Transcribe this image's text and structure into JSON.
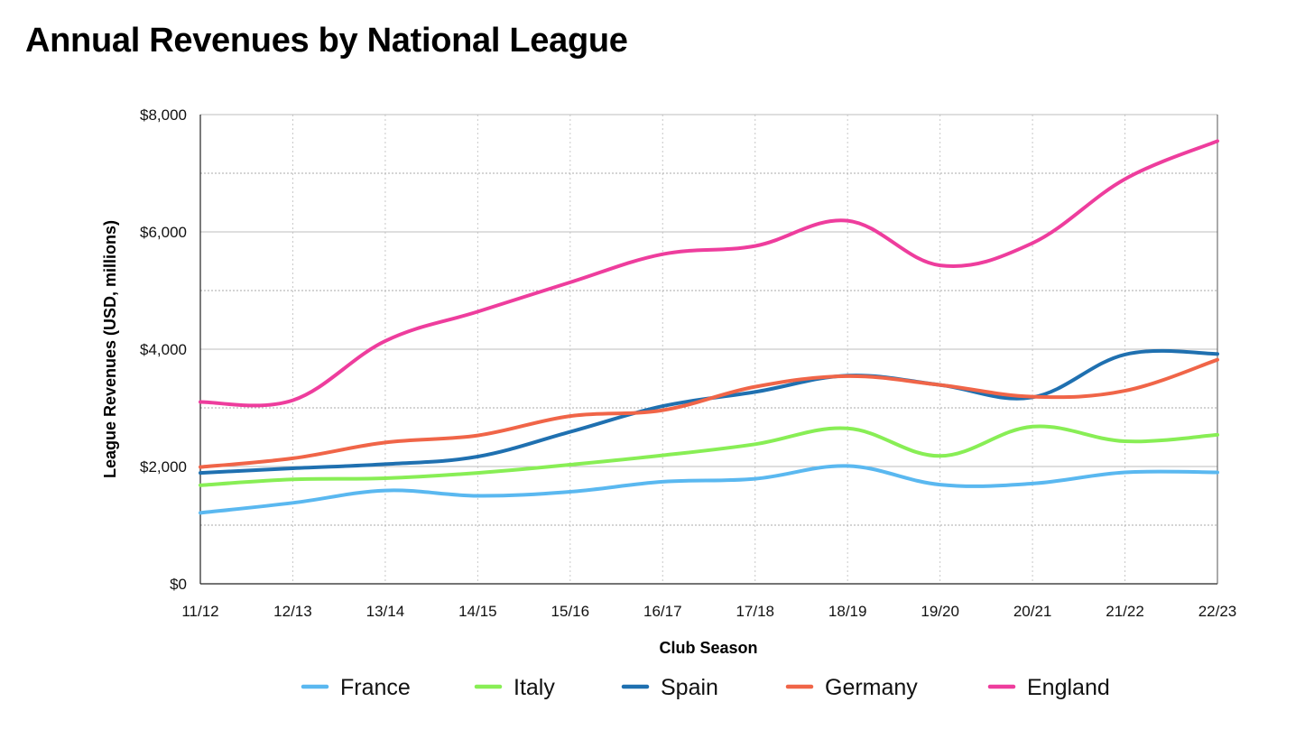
{
  "chart_data": {
    "type": "line",
    "title": "Annual Revenues by National League",
    "xlabel": "Club Season",
    "ylabel": "League Revenues (USD, millions)",
    "categories": [
      "11/12",
      "12/13",
      "13/14",
      "14/15",
      "15/16",
      "16/17",
      "17/18",
      "18/19",
      "19/20",
      "20/21",
      "21/22",
      "22/23"
    ],
    "ylim": [
      0,
      8000
    ],
    "yticks": [
      0,
      2000,
      4000,
      6000,
      8000
    ],
    "ytick_labels": [
      "$0",
      "$2,000",
      "$4,000",
      "$6,000",
      "$8,000"
    ],
    "minor_gridlines": [
      1000,
      3000,
      5000,
      7000
    ],
    "grid": true,
    "legend_position": "bottom",
    "series": [
      {
        "name": "France",
        "color": "#5ab8f0",
        "values": [
          1210,
          1380,
          1590,
          1500,
          1570,
          1740,
          1790,
          2010,
          1690,
          1710,
          1900,
          1900
        ]
      },
      {
        "name": "Italy",
        "color": "#88ee55",
        "values": [
          1680,
          1780,
          1800,
          1890,
          2030,
          2190,
          2380,
          2650,
          2180,
          2680,
          2430,
          2540
        ]
      },
      {
        "name": "Spain",
        "color": "#1f70b0",
        "values": [
          1890,
          1970,
          2040,
          2170,
          2590,
          3030,
          3270,
          3550,
          3390,
          3180,
          3910,
          3920
        ]
      },
      {
        "name": "Germany",
        "color": "#f06548",
        "values": [
          1990,
          2140,
          2410,
          2530,
          2860,
          2960,
          3360,
          3540,
          3390,
          3190,
          3290,
          3820
        ]
      },
      {
        "name": "England",
        "color": "#ee3d9d",
        "values": [
          3100,
          3130,
          4140,
          4640,
          5140,
          5620,
          5760,
          6190,
          5430,
          5810,
          6900,
          7550
        ]
      }
    ]
  }
}
